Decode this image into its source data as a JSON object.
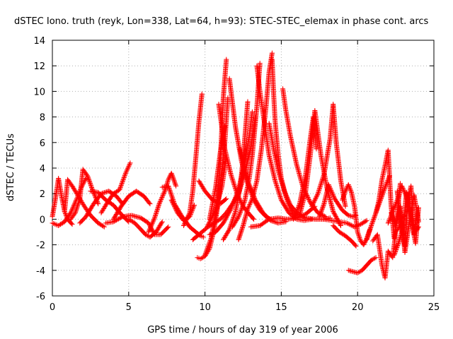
{
  "chart_data": {
    "type": "scatter",
    "title": "dSTEC Iono. truth (reyk, Lon=338, Lat=64, h=93): STEC-STEC_elemax in phase cont. arcs",
    "xlabel": "GPS time / hours of day 319 of year 2006",
    "ylabel": "dSTEC  / TECUs",
    "xlim": [
      0,
      25
    ],
    "ylim": [
      -6,
      14
    ],
    "x_ticks": [
      0,
      5,
      10,
      15,
      20,
      25
    ],
    "x_tick_labels": [
      "0",
      "5",
      "10",
      "15",
      "20",
      "25"
    ],
    "y_ticks": [
      -6,
      -4,
      -2,
      0,
      2,
      4,
      6,
      8,
      10,
      12,
      14
    ],
    "y_tick_labels": [
      "-6",
      "-4",
      "-2",
      "0",
      "2",
      "4",
      "6",
      "8",
      "10",
      "12",
      "14"
    ],
    "grid": true,
    "legend": "none",
    "marker": "+",
    "color": "#ff0000",
    "series": [
      {
        "x": [
          0.0,
          0.2,
          0.4,
          0.6,
          0.8,
          1.0,
          1.3
        ],
        "y": [
          0.2,
          1.6,
          3.2,
          1.8,
          0.6,
          0.0,
          -0.4
        ]
      },
      {
        "x": [
          0.0,
          0.4,
          0.8,
          1.2,
          1.6,
          1.9,
          2.2
        ],
        "y": [
          -0.3,
          -0.5,
          -0.2,
          0.5,
          1.6,
          2.5,
          3.2
        ]
      },
      {
        "x": [
          0.8,
          1.0,
          1.3,
          1.7,
          2.1,
          2.5,
          3.0,
          3.4
        ],
        "y": [
          0.6,
          3.1,
          2.6,
          1.8,
          1.0,
          0.3,
          -0.3,
          -0.6
        ]
      },
      {
        "x": [
          1.2,
          1.5,
          1.8,
          2.0,
          2.3,
          2.6,
          3.0
        ],
        "y": [
          0.0,
          0.5,
          1.6,
          3.9,
          3.4,
          2.4,
          1.2
        ]
      },
      {
        "x": [
          1.8,
          2.2,
          2.7,
          3.2,
          3.7,
          4.2,
          4.6
        ],
        "y": [
          -0.3,
          0.2,
          1.2,
          2.0,
          2.2,
          1.8,
          1.2
        ]
      },
      {
        "x": [
          2.5,
          3.0,
          3.5,
          4.0,
          4.5,
          5.0
        ],
        "y": [
          2.2,
          2.1,
          1.5,
          1.1,
          0.4,
          -0.2
        ]
      },
      {
        "x": [
          3.2,
          3.6,
          4.0,
          4.4,
          4.8,
          5.1
        ],
        "y": [
          0.5,
          1.3,
          2.0,
          2.3,
          3.6,
          4.4
        ]
      },
      {
        "x": [
          4.0,
          4.5,
          5.0,
          5.5,
          6.0,
          6.4
        ],
        "y": [
          0.0,
          1.0,
          1.8,
          2.2,
          1.8,
          1.2
        ]
      },
      {
        "x": [
          3.5,
          4.0,
          4.6,
          5.2,
          5.8,
          6.3,
          6.7,
          7.1,
          7.6
        ],
        "y": [
          -0.3,
          -0.2,
          0.2,
          0.3,
          0.1,
          -0.3,
          -1.2,
          -1.2,
          -0.6
        ]
      },
      {
        "x": [
          5.0,
          5.4,
          5.8,
          6.1,
          6.4,
          6.8,
          7.2
        ],
        "y": [
          0.0,
          -0.3,
          -0.8,
          -1.2,
          -1.4,
          -1.0,
          -0.2
        ]
      },
      {
        "x": [
          6.3,
          6.7,
          7.0,
          7.4,
          7.6,
          7.8,
          8.1
        ],
        "y": [
          -1.0,
          0.1,
          1.2,
          2.3,
          3.1,
          3.6,
          2.6
        ]
      },
      {
        "x": [
          7.2,
          7.6,
          8.0,
          8.5,
          9.0,
          9.4,
          9.7,
          9.9
        ],
        "y": [
          2.5,
          2.6,
          1.2,
          0.2,
          -0.6,
          -1.0,
          -1.3,
          -1.4
        ]
      },
      {
        "x": [
          7.8,
          8.2,
          8.6,
          9.0,
          9.3
        ],
        "y": [
          1.5,
          0.5,
          -0.1,
          0.2,
          1.1
        ]
      },
      {
        "x": [
          8.6,
          9.0,
          9.2,
          9.4,
          9.6,
          9.8
        ],
        "y": [
          -0.5,
          0.5,
          2.2,
          4.8,
          7.6,
          9.8
        ]
      },
      {
        "x": [
          9.2,
          9.6,
          10.1,
          10.6,
          11.1,
          11.4
        ],
        "y": [
          -1.6,
          -1.2,
          -0.7,
          0.5,
          2.5,
          4.8
        ]
      },
      {
        "x": [
          9.6,
          10.0,
          10.5,
          11.0,
          11.4
        ],
        "y": [
          3.0,
          2.2,
          1.5,
          1.2,
          1.6
        ]
      },
      {
        "x": [
          9.5,
          9.7,
          10.0,
          10.3,
          10.6,
          10.9,
          11.3,
          11.5
        ],
        "y": [
          -3.0,
          -3.1,
          -2.9,
          -2.3,
          -0.8,
          1.5,
          6.0,
          9.5
        ]
      },
      {
        "x": [
          10.0,
          10.4,
          10.8,
          11.0,
          11.2,
          11.4
        ],
        "y": [
          -2.8,
          -1.5,
          1.0,
          4.5,
          9.5,
          12.5
        ]
      },
      {
        "x": [
          10.3,
          10.7,
          11.0,
          11.3
        ],
        "y": [
          0.0,
          2.5,
          5.2,
          7.3
        ]
      },
      {
        "x": [
          10.2,
          10.6,
          11.0,
          11.4,
          11.8,
          12.2,
          12.6,
          13.0,
          13.3
        ],
        "y": [
          -0.6,
          -0.3,
          0.0,
          0.5,
          1.2,
          2.0,
          3.5,
          5.6,
          8.0
        ]
      },
      {
        "x": [
          10.3,
          10.7,
          11.2,
          11.7,
          12.2,
          12.6,
          12.9,
          13.1
        ],
        "y": [
          -1.2,
          -1.0,
          -0.3,
          0.8,
          2.3,
          4.4,
          6.5,
          8.4
        ]
      },
      {
        "x": [
          11.2,
          11.6,
          12.0,
          12.3,
          12.5,
          12.8
        ],
        "y": [
          -1.6,
          -0.8,
          0.6,
          2.5,
          4.7,
          9.2
        ]
      },
      {
        "x": [
          11.8,
          12.2,
          12.6,
          12.9,
          13.1,
          13.4,
          13.6
        ],
        "y": [
          -0.6,
          0.2,
          1.4,
          3.2,
          5.0,
          8.8,
          12.2
        ]
      },
      {
        "x": [
          12.2,
          12.5,
          12.8,
          13.1,
          13.4,
          13.7,
          14.0,
          14.2,
          14.4
        ],
        "y": [
          -1.6,
          -0.5,
          0.8,
          1.6,
          3.0,
          5.5,
          8.8,
          11.5,
          13.0
        ]
      },
      {
        "x": [
          10.9,
          11.3,
          11.7,
          12.1,
          12.5,
          12.9,
          13.2
        ],
        "y": [
          9.0,
          5.5,
          3.5,
          2.0,
          1.0,
          0.4,
          0.0
        ]
      },
      {
        "x": [
          11.6,
          12.0,
          12.4,
          12.8,
          13.2,
          13.6,
          14.0,
          14.3
        ],
        "y": [
          11.0,
          7.2,
          4.5,
          2.8,
          1.5,
          0.7,
          0.2,
          0.0
        ]
      },
      {
        "x": [
          12.3,
          12.8,
          13.3,
          13.8,
          14.3,
          14.8,
          15.3
        ],
        "y": [
          5.5,
          3.0,
          1.5,
          0.5,
          -0.1,
          -0.3,
          -0.2
        ]
      },
      {
        "x": [
          13.4,
          13.6,
          13.9,
          14.2,
          14.6,
          15.0,
          15.5,
          16.0,
          16.5,
          17.0
        ],
        "y": [
          12.0,
          10.0,
          7.5,
          5.0,
          3.0,
          1.5,
          0.5,
          0.0,
          -0.1,
          0.0
        ]
      },
      {
        "x": [
          14.4,
          14.5,
          14.6,
          14.8,
          15.0,
          15.3,
          15.6,
          16.0
        ],
        "y": [
          12.5,
          9.8,
          7.6,
          5.0,
          3.2,
          1.8,
          0.8,
          0.2
        ]
      },
      {
        "x": [
          14.2,
          14.5,
          14.8,
          15.2,
          15.6,
          16.1,
          16.6,
          17.2,
          17.8,
          18.2
        ],
        "y": [
          7.5,
          5.5,
          3.8,
          2.2,
          1.1,
          0.4,
          0.1,
          0.0,
          0.0,
          0.1
        ]
      },
      {
        "x": [
          13.0,
          13.6,
          14.2,
          14.8,
          15.4,
          16.0,
          16.6,
          17.2
        ],
        "y": [
          -0.6,
          -0.5,
          0.0,
          0.1,
          0.0,
          0.1,
          0.4,
          1.0
        ]
      },
      {
        "x": [
          15.1,
          15.3,
          15.6,
          16.0,
          16.4,
          16.9,
          17.4,
          17.9
        ],
        "y": [
          10.2,
          8.5,
          6.5,
          4.3,
          2.6,
          1.3,
          0.5,
          0.2
        ]
      },
      {
        "x": [
          15.8,
          16.2,
          16.6,
          16.9,
          17.1,
          17.3
        ],
        "y": [
          0.0,
          1.2,
          3.5,
          6.3,
          8.0,
          5.5
        ]
      },
      {
        "x": [
          16.2,
          16.6,
          16.9,
          17.2,
          17.6,
          18.0,
          18.4,
          18.9
        ],
        "y": [
          0.3,
          2.2,
          5.0,
          8.5,
          5.0,
          2.4,
          0.6,
          -0.5
        ]
      },
      {
        "x": [
          17.0,
          17.4,
          17.8,
          18.2,
          18.4,
          18.6,
          18.9,
          19.2
        ],
        "y": [
          1.0,
          2.0,
          3.5,
          6.3,
          9.0,
          6.0,
          3.0,
          1.0
        ]
      },
      {
        "x": [
          17.5,
          17.8,
          18.1,
          18.5,
          19.0,
          19.4,
          19.7,
          19.9
        ],
        "y": [
          0.2,
          1.2,
          2.7,
          1.6,
          0.7,
          0.3,
          0.2,
          0.3
        ]
      },
      {
        "x": [
          17.8,
          18.3,
          18.8,
          19.3,
          19.8,
          20.2,
          20.6
        ],
        "y": [
          0.0,
          -0.1,
          -0.2,
          -0.3,
          -0.6,
          -0.4,
          -0.1
        ]
      },
      {
        "x": [
          18.4,
          18.8,
          19.2,
          19.6,
          19.9
        ],
        "y": [
          -0.5,
          -1.0,
          -1.3,
          -1.7,
          -2.1
        ]
      },
      {
        "x": [
          19.0,
          19.2,
          19.4,
          19.6,
          19.8,
          20.0,
          20.2,
          20.4,
          20.6,
          20.8
        ],
        "y": [
          1.5,
          2.2,
          2.7,
          2.1,
          1.0,
          -1.0,
          -1.7,
          -2.0,
          -1.5,
          -0.8
        ]
      },
      {
        "x": [
          19.4,
          19.7,
          20.0,
          20.3,
          20.6,
          20.9,
          21.2
        ],
        "y": [
          -4.0,
          -4.1,
          -4.2,
          -4.0,
          -3.6,
          -3.2,
          -3.0
        ]
      },
      {
        "x": [
          20.6,
          20.9,
          21.2,
          21.5,
          21.8,
          22.1
        ],
        "y": [
          -1.6,
          -0.5,
          0.5,
          1.5,
          2.5,
          3.4
        ]
      },
      {
        "x": [
          21.2,
          21.4,
          21.6,
          21.8,
          22.0,
          22.2,
          22.4,
          22.6,
          22.8
        ],
        "y": [
          0.5,
          1.5,
          3.1,
          4.2,
          5.4,
          1.0,
          -1.5,
          0.5,
          2.8
        ]
      },
      {
        "x": [
          21.0,
          21.3,
          21.6,
          21.8,
          22.0,
          22.3,
          22.5,
          22.8,
          23.0
        ],
        "y": [
          -1.7,
          -1.2,
          -3.6,
          -4.6,
          -2.5,
          -3.0,
          -1.0,
          -0.5,
          0.3
        ]
      },
      {
        "x": [
          22.0,
          22.3,
          22.6,
          22.9,
          23.2,
          23.5,
          23.8,
          24.0
        ],
        "y": [
          -0.3,
          0.6,
          1.5,
          2.6,
          1.8,
          0.3,
          -1.0,
          -0.6
        ]
      },
      {
        "x": [
          22.4,
          22.7,
          23.0,
          23.2,
          23.4,
          23.6,
          23.8,
          24.0
        ],
        "y": [
          -2.8,
          -1.8,
          -0.6,
          2.1,
          1.1,
          -0.6,
          -1.9,
          0.9
        ]
      },
      {
        "x": [
          22.6,
          22.9,
          23.1,
          23.3,
          23.5,
          23.7,
          23.9
        ],
        "y": [
          2.2,
          -1.0,
          -2.1,
          1.5,
          2.6,
          -1.2,
          0.5
        ]
      },
      {
        "x": [
          22.2,
          22.5,
          22.8,
          23.1,
          23.4,
          23.7,
          24.0
        ],
        "y": [
          0.5,
          -0.6,
          1.0,
          -2.6,
          -0.2,
          1.9,
          -0.2
        ]
      }
    ]
  }
}
